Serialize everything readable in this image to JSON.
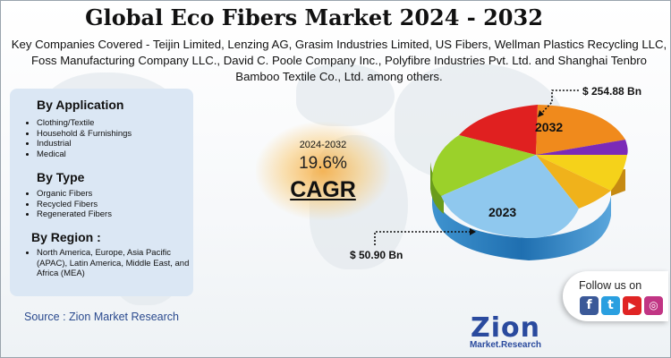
{
  "title": "Global Eco Fibers Market 2024 - 2032",
  "companies_text": "Key Companies Covered - Teijin Limited, Lenzing AG, Grasim Industries Limited, US Fibers, Wellman Plastics Recycling LLC, Foss Manufacturing Company LLC., David C. Poole Company Inc., Polyfibre Industries Pvt. Ltd. and Shanghai Tenbro Bamboo Textile Co., Ltd. among others.",
  "segments": {
    "application": {
      "title": "By Application",
      "items": [
        "Clothing/Textile",
        "Household & Furnishings",
        "Industrial",
        "Medical"
      ]
    },
    "type": {
      "title": "By Type",
      "items": [
        "Organic Fibers",
        "Recycled Fibers",
        "Regenerated Fibers"
      ]
    },
    "region": {
      "title": "By Region :",
      "items": [
        "North America, Europe, Asia Pacific (APAC), Latin America, Middle East, and Africa (MEA)"
      ]
    }
  },
  "source": "Source : Zion Market Research",
  "cagr": {
    "period": "2024-2032",
    "value": "19.6%",
    "label": "CAGR"
  },
  "pie": {
    "label_2032": "2032",
    "label_2023": "2023",
    "value_2032": "$ 254.88 Bn",
    "value_2023": "$ 50.90 Bn",
    "colors": [
      "#e02020",
      "#f08a1c",
      "#7b2ab8",
      "#f5d21a",
      "#f0b21b",
      "#9bd12a",
      "#8fc8ee"
    ]
  },
  "follow": {
    "label": "Follow us on",
    "icons": [
      "facebook-icon",
      "twitter-icon",
      "youtube-icon",
      "instagram-icon"
    ]
  },
  "logo": {
    "main": "Zion",
    "sub": "Market.Research"
  }
}
